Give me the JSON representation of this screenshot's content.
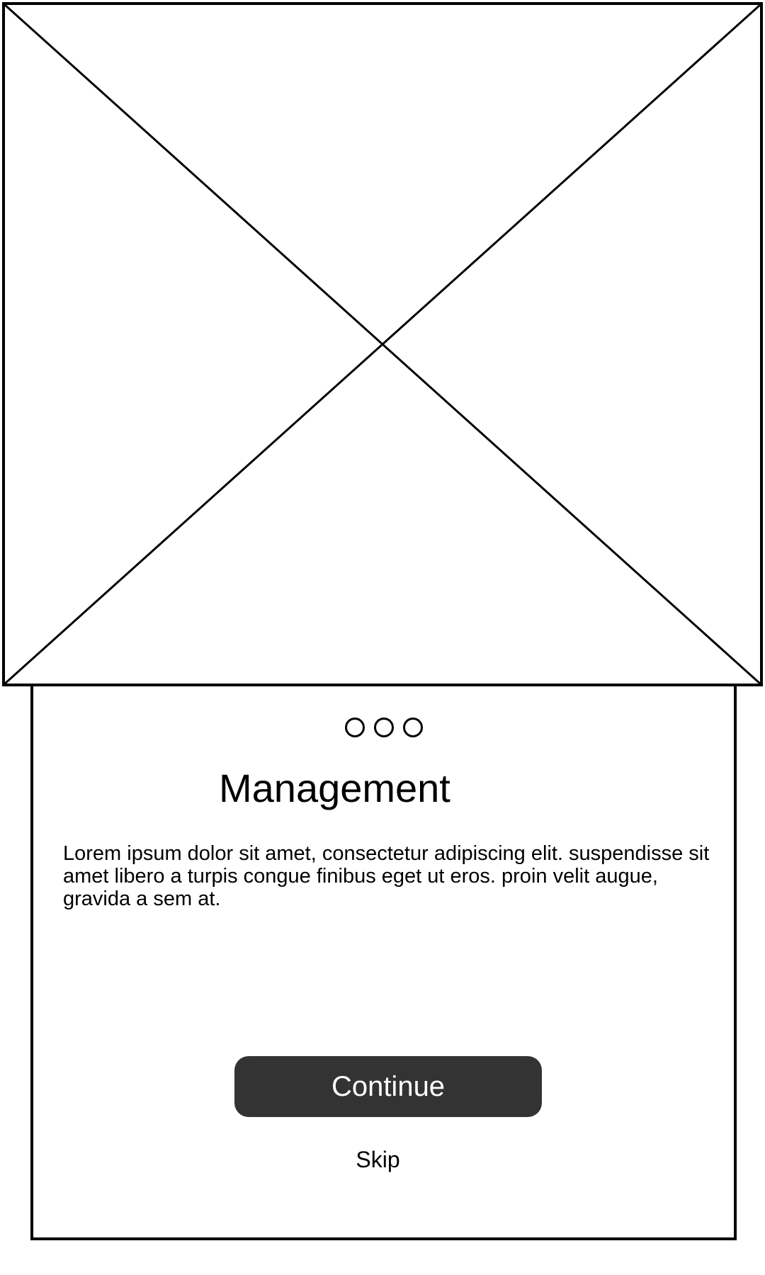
{
  "hero": {
    "icon": "image-placeholder-icon"
  },
  "pager": {
    "total": 3
  },
  "title": "Management",
  "description": "Lorem ipsum dolor sit amet, consectetur adipiscing elit. suspendisse sit amet libero a turpis congue finibus eget ut eros. proin velit augue, gravida a sem at.",
  "actions": {
    "continue_label": "Continue",
    "skip_label": "Skip"
  },
  "colors": {
    "button_background": "#333333",
    "button_text": "#ffffff",
    "stroke": "#000000"
  }
}
